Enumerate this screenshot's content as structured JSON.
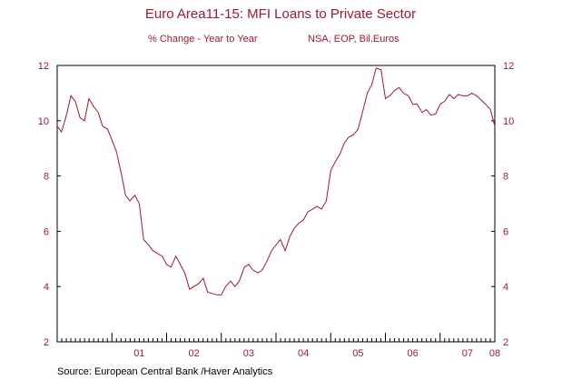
{
  "chart_data": {
    "type": "line",
    "title": "Euro Area11-15: MFI Loans to Private Sector",
    "subtitle_left": "% Change - Year to Year",
    "subtitle_right": "NSA, EOP, Bil.Euros",
    "source": "Source:  European Central Bank /Haver Analytics",
    "ylim": [
      2,
      12
    ],
    "yticks": [
      "2",
      "4",
      "6",
      "8",
      "10",
      "12"
    ],
    "xlim": [
      2000.0,
      2008.0
    ],
    "xtick_labels": [
      {
        "label": "01",
        "x": 2001.0
      },
      {
        "label": "02",
        "x": 2002.0
      },
      {
        "label": "03",
        "x": 2003.0
      },
      {
        "label": "04",
        "x": 2004.0
      },
      {
        "label": "05",
        "x": 2005.0
      },
      {
        "label": "06",
        "x": 2006.0
      },
      {
        "label": "07",
        "x": 2007.0
      },
      {
        "label": "08",
        "x": 2008.0
      }
    ],
    "colors": {
      "line": "#a0182c",
      "text": "#9b1b30",
      "axis": "#000000"
    },
    "series": [
      {
        "values": [
          [
            2000.0,
            9.8
          ],
          [
            2000.08,
            9.6
          ],
          [
            2000.17,
            10.2
          ],
          [
            2000.25,
            10.9
          ],
          [
            2000.33,
            10.7
          ],
          [
            2000.42,
            10.1
          ],
          [
            2000.5,
            10.0
          ],
          [
            2000.58,
            10.8
          ],
          [
            2000.67,
            10.5
          ],
          [
            2000.75,
            10.3
          ],
          [
            2000.83,
            9.8
          ],
          [
            2000.92,
            9.7
          ],
          [
            2001.0,
            9.3
          ],
          [
            2001.08,
            8.9
          ],
          [
            2001.17,
            8.1
          ],
          [
            2001.25,
            7.3
          ],
          [
            2001.33,
            7.1
          ],
          [
            2001.42,
            7.3
          ],
          [
            2001.5,
            7.0
          ],
          [
            2001.58,
            5.7
          ],
          [
            2001.67,
            5.5
          ],
          [
            2001.75,
            5.3
          ],
          [
            2001.83,
            5.2
          ],
          [
            2001.92,
            5.1
          ],
          [
            2002.0,
            4.8
          ],
          [
            2002.08,
            4.7
          ],
          [
            2002.17,
            5.1
          ],
          [
            2002.25,
            4.8
          ],
          [
            2002.33,
            4.5
          ],
          [
            2002.42,
            3.9
          ],
          [
            2002.5,
            4.0
          ],
          [
            2002.58,
            4.1
          ],
          [
            2002.67,
            4.3
          ],
          [
            2002.75,
            3.8
          ],
          [
            2002.83,
            3.75
          ],
          [
            2002.92,
            3.7
          ],
          [
            2003.0,
            3.7
          ],
          [
            2003.08,
            4.0
          ],
          [
            2003.17,
            4.2
          ],
          [
            2003.25,
            4.0
          ],
          [
            2003.33,
            4.2
          ],
          [
            2003.42,
            4.7
          ],
          [
            2003.5,
            4.8
          ],
          [
            2003.58,
            4.6
          ],
          [
            2003.67,
            4.5
          ],
          [
            2003.75,
            4.6
          ],
          [
            2003.83,
            4.9
          ],
          [
            2003.92,
            5.3
          ],
          [
            2004.0,
            5.5
          ],
          [
            2004.08,
            5.7
          ],
          [
            2004.17,
            5.3
          ],
          [
            2004.25,
            5.8
          ],
          [
            2004.33,
            6.1
          ],
          [
            2004.42,
            6.3
          ],
          [
            2004.5,
            6.4
          ],
          [
            2004.58,
            6.7
          ],
          [
            2004.67,
            6.8
          ],
          [
            2004.75,
            6.9
          ],
          [
            2004.83,
            6.8
          ],
          [
            2004.92,
            7.1
          ],
          [
            2005.0,
            8.2
          ],
          [
            2005.08,
            8.5
          ],
          [
            2005.17,
            8.8
          ],
          [
            2005.25,
            9.2
          ],
          [
            2005.33,
            9.4
          ],
          [
            2005.42,
            9.5
          ],
          [
            2005.5,
            9.7
          ],
          [
            2005.58,
            10.3
          ],
          [
            2005.67,
            11.0
          ],
          [
            2005.75,
            11.3
          ],
          [
            2005.83,
            11.9
          ],
          [
            2005.92,
            11.85
          ],
          [
            2006.0,
            10.8
          ],
          [
            2006.08,
            10.9
          ],
          [
            2006.17,
            11.1
          ],
          [
            2006.25,
            11.2
          ],
          [
            2006.33,
            11.0
          ],
          [
            2006.42,
            10.9
          ],
          [
            2006.5,
            10.6
          ],
          [
            2006.58,
            10.6
          ],
          [
            2006.67,
            10.3
          ],
          [
            2006.75,
            10.4
          ],
          [
            2006.83,
            10.2
          ],
          [
            2006.92,
            10.25
          ],
          [
            2007.0,
            10.6
          ],
          [
            2007.08,
            10.7
          ],
          [
            2007.17,
            10.95
          ],
          [
            2007.25,
            10.8
          ],
          [
            2007.33,
            10.95
          ],
          [
            2007.42,
            10.9
          ],
          [
            2007.5,
            10.9
          ],
          [
            2007.58,
            11.0
          ],
          [
            2007.67,
            10.9
          ],
          [
            2007.75,
            10.75
          ],
          [
            2007.83,
            10.6
          ],
          [
            2007.92,
            10.4
          ],
          [
            2008.0,
            9.8
          ]
        ]
      }
    ]
  }
}
